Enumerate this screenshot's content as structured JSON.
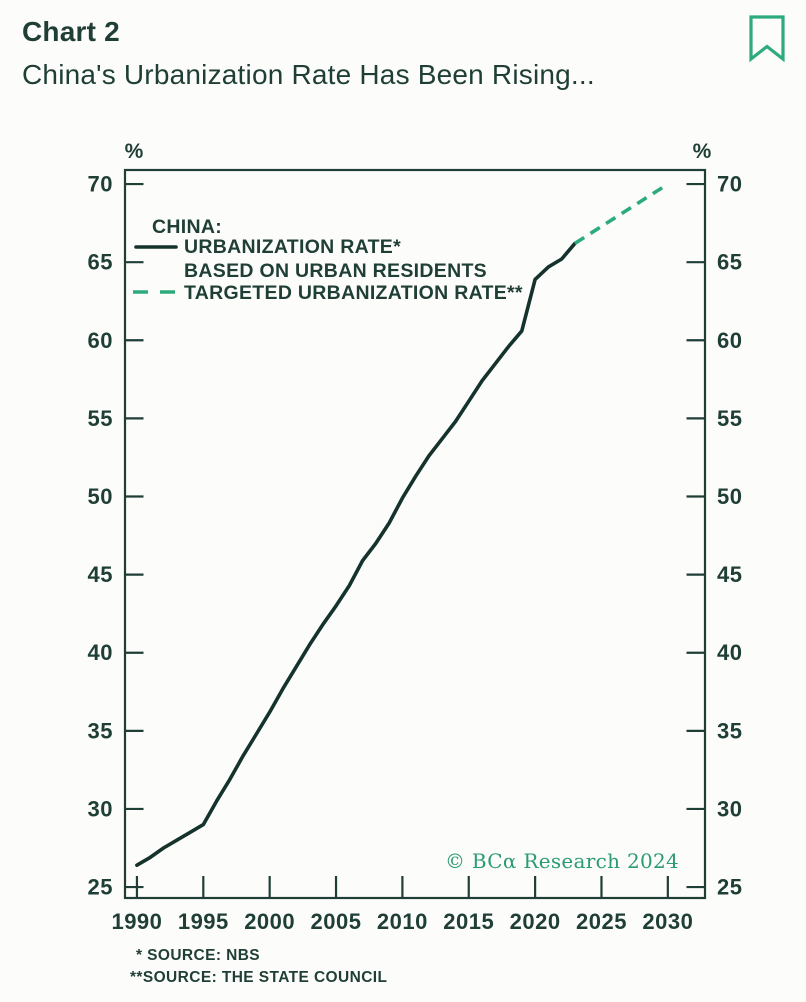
{
  "header": {
    "chart_label": "Chart 2",
    "title": "China's Urbanization Rate Has Been Rising..."
  },
  "chart_data": {
    "type": "line",
    "unit_label": "%",
    "xlim": [
      1989.1,
      2032.8
    ],
    "ylim": [
      24.3,
      70.9
    ],
    "x_ticks": [
      1990,
      1995,
      2000,
      2005,
      2010,
      2015,
      2020,
      2025,
      2030
    ],
    "y_ticks": [
      25,
      30,
      35,
      40,
      45,
      50,
      55,
      60,
      65,
      70
    ],
    "grid": false,
    "legend_position": "top-left-inside",
    "legend": {
      "heading": "CHINA:",
      "series1_label": "URBANIZATION RATE*",
      "series1_label2": "BASED ON URBAN RESIDENTS",
      "series2_label": "TARGETED URBANIZATION RATE**"
    },
    "series": [
      {
        "name": "URBANIZATION RATE* BASED ON URBAN RESIDENTS",
        "style": "solid",
        "color": "#15332c",
        "x": [
          1990,
          1991,
          1992,
          1993,
          1994,
          1995,
          1996,
          1997,
          1998,
          1999,
          2000,
          2001,
          2002,
          2003,
          2004,
          2005,
          2006,
          2007,
          2008,
          2009,
          2010,
          2011,
          2012,
          2013,
          2014,
          2015,
          2016,
          2017,
          2018,
          2019,
          2020,
          2021,
          2022,
          2023
        ],
        "values": [
          26.4,
          26.9,
          27.5,
          28.0,
          28.5,
          29.0,
          30.5,
          31.9,
          33.4,
          34.8,
          36.2,
          37.7,
          39.1,
          40.5,
          41.8,
          43.0,
          44.3,
          45.9,
          47.0,
          48.3,
          49.9,
          51.3,
          52.6,
          53.7,
          54.8,
          56.1,
          57.4,
          58.5,
          59.6,
          60.6,
          63.9,
          64.7,
          65.2,
          66.2
        ]
      },
      {
        "name": "TARGETED URBANIZATION RATE**",
        "style": "dashed",
        "color": "#2dab7d",
        "x": [
          2023,
          2030
        ],
        "values": [
          66.2,
          70.0
        ]
      }
    ],
    "copyright": "© BCα Research 2024"
  },
  "footnotes": {
    "line1": "* SOURCE: NBS",
    "line2": "**SOURCE: THE STATE COUNCIL"
  },
  "colors": {
    "ink": "#1f3e36",
    "line_dark": "#15332c",
    "accent_green": "#2dab7d",
    "copyright_green": "#2b9b72",
    "background": "#fcfcfa"
  }
}
